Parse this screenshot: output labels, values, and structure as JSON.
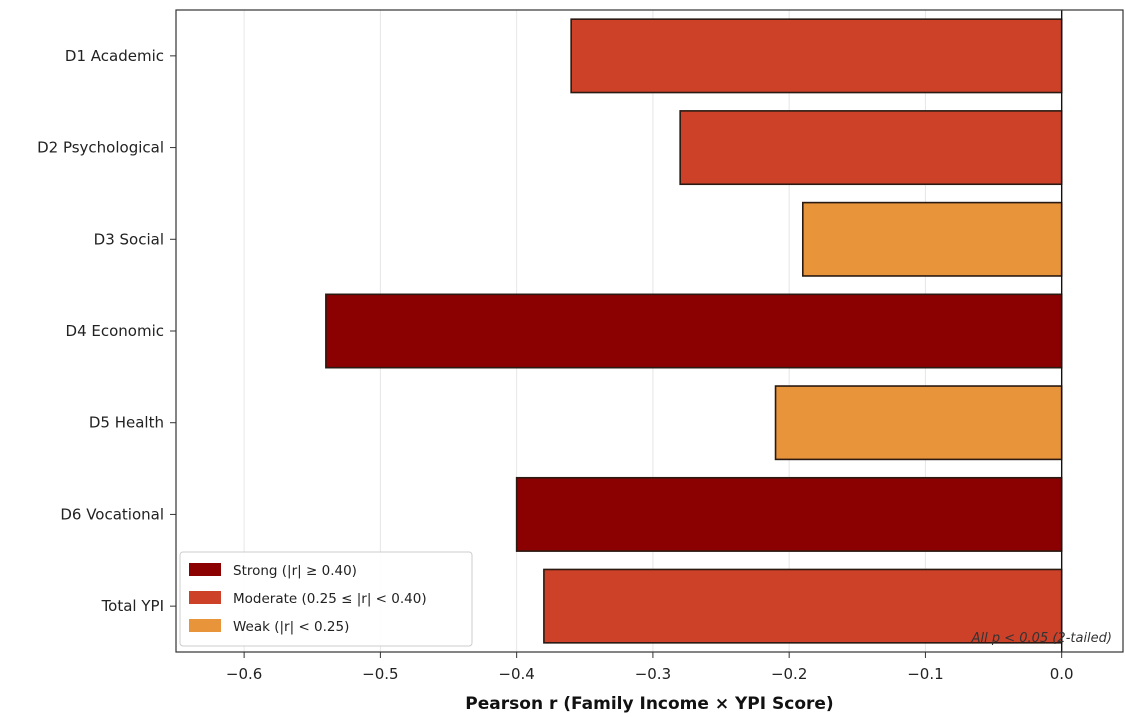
{
  "chart_data": {
    "type": "bar",
    "orientation": "horizontal",
    "categories": [
      "D1 Academic",
      "D2 Psychological",
      "D3 Social",
      "D4 Economic",
      "D5 Health",
      "D6 Vocational",
      "Total YPI"
    ],
    "values": [
      -0.36,
      -0.28,
      -0.19,
      -0.54,
      -0.21,
      -0.4,
      -0.38
    ],
    "strength": [
      "moderate",
      "moderate",
      "weak",
      "strong",
      "weak",
      "strong",
      "moderate"
    ],
    "xlabel": "Pearson r (Family Income × YPI Score)",
    "ylabel": "",
    "xlim": [
      -0.65,
      0.045
    ],
    "xticks": [
      -0.6,
      -0.5,
      -0.4,
      -0.3,
      -0.2,
      -0.1,
      0.0
    ],
    "xtick_labels": [
      "−0.6",
      "−0.5",
      "−0.4",
      "−0.3",
      "−0.2",
      "−0.1",
      "0.0"
    ],
    "grid": "vertical",
    "legend_position": "bottom-left",
    "legend": [
      {
        "key": "strong",
        "label": "Strong (|r| ≥ 0.40)",
        "color": "#8b0000"
      },
      {
        "key": "moderate",
        "label": "Moderate (0.25 ≤ |r| < 0.40)",
        "color": "#cd4129"
      },
      {
        "key": "weak",
        "label": "Weak (|r| < 0.25)",
        "color": "#e8943a"
      }
    ],
    "annotation": "All p < 0.05 (2-tailed)"
  }
}
